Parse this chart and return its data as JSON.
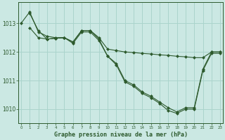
{
  "title": "Graphe pression niveau de la mer (hPa)",
  "background_color": "#cbe8e3",
  "grid_color": "#aad4cc",
  "line_color": "#2d5a2d",
  "x_min": 0,
  "x_max": 23,
  "y_min": 1009.5,
  "y_max": 1013.75,
  "yticks": [
    1010,
    1011,
    1012,
    1013
  ],
  "xticks": [
    0,
    1,
    2,
    3,
    4,
    5,
    6,
    7,
    8,
    9,
    10,
    11,
    12,
    13,
    14,
    15,
    16,
    17,
    18,
    19,
    20,
    21,
    22,
    23
  ],
  "series": [
    {
      "x": [
        0,
        1,
        2,
        3,
        4,
        5,
        6,
        7,
        8,
        9,
        10,
        11,
        12,
        13,
        14,
        15,
        16,
        17,
        18,
        19,
        20,
        21,
        22,
        23
      ],
      "y": [
        1013.0,
        1013.4,
        1012.7,
        1012.55,
        1012.5,
        1012.5,
        1012.35,
        1012.75,
        1012.75,
        1012.5,
        1012.1,
        1012.05,
        1012.0,
        1011.98,
        1011.95,
        1011.93,
        1011.9,
        1011.88,
        1011.85,
        1011.83,
        1011.8,
        1011.8,
        1012.0,
        1012.0
      ],
      "marker": "D",
      "markersize": 2.0
    },
    {
      "x": [
        1,
        2,
        3,
        4,
        5,
        6,
        7,
        8,
        9,
        10,
        11,
        12,
        13,
        14,
        15,
        16,
        17,
        18,
        19,
        20,
        21,
        22,
        23
      ],
      "y": [
        1012.85,
        1012.5,
        1012.45,
        1012.48,
        1012.5,
        1012.3,
        1012.7,
        1012.7,
        1012.4,
        1011.85,
        1011.6,
        1011.0,
        1010.85,
        1010.6,
        1010.45,
        1010.25,
        1010.05,
        1009.9,
        1010.05,
        1010.05,
        1011.4,
        1012.0,
        1012.0
      ],
      "marker": "D",
      "markersize": 2.0
    },
    {
      "x": [
        1,
        2,
        3,
        4,
        5,
        6,
        7,
        8,
        9,
        10,
        11,
        12,
        13,
        14,
        15,
        16,
        17,
        18,
        19,
        20,
        21,
        22,
        23
      ],
      "y": [
        1013.35,
        1012.75,
        1012.45,
        1012.48,
        1012.5,
        1012.35,
        1012.75,
        1012.75,
        1012.45,
        1011.85,
        1011.55,
        1010.95,
        1010.8,
        1010.55,
        1010.4,
        1010.2,
        1009.95,
        1009.85,
        1010.0,
        1010.0,
        1011.35,
        1011.95,
        1011.95
      ],
      "marker": "D",
      "markersize": 2.0
    }
  ]
}
